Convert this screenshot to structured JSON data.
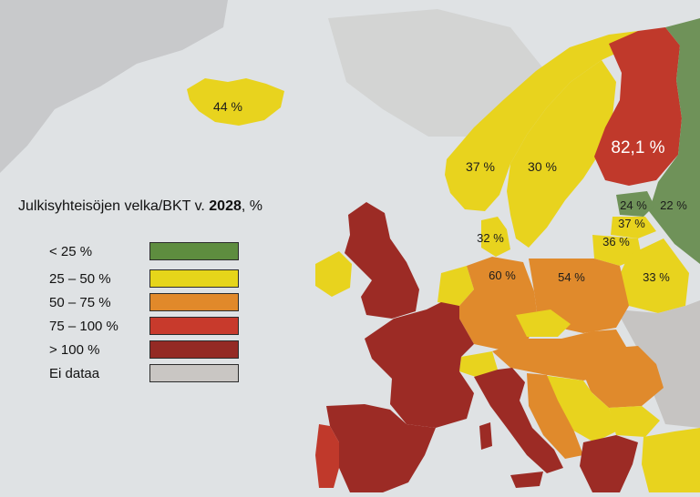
{
  "legend": {
    "title_prefix": "Julkisyhteisöjen velka/BKT v. ",
    "title_year": "2028",
    "title_suffix": ", %",
    "items": [
      {
        "label": "< 25 %",
        "color": "#5e8d3f"
      },
      {
        "label": "25 – 50 %",
        "color": "#e6d51a"
      },
      {
        "label": "50 – 75 %",
        "color": "#e1892a"
      },
      {
        "label": "75 – 100 %",
        "color": "#c83a2c"
      },
      {
        "label": "> 100 %",
        "color": "#942a24"
      },
      {
        "label": "Ei dataa",
        "color": "#c9c6c3"
      }
    ]
  },
  "colors": {
    "sea": "#dfe2e4",
    "green": "#6f9259",
    "yellow": "#e8d31e",
    "orange": "#e08a2c",
    "red": "#c0392b",
    "darkred": "#9c2b25",
    "nodata": "#c6c4c2"
  },
  "country_values": {
    "iceland": "44 %",
    "norway": "37 %",
    "sweden": "30 %",
    "finland": "82,1 %",
    "estonia": "24 %",
    "russia": "22 %",
    "latvia": "37 %",
    "lithuania": "36 %",
    "denmark": "32 %",
    "germany": "60 %",
    "poland": "54 %",
    "belarus": "33 %"
  }
}
